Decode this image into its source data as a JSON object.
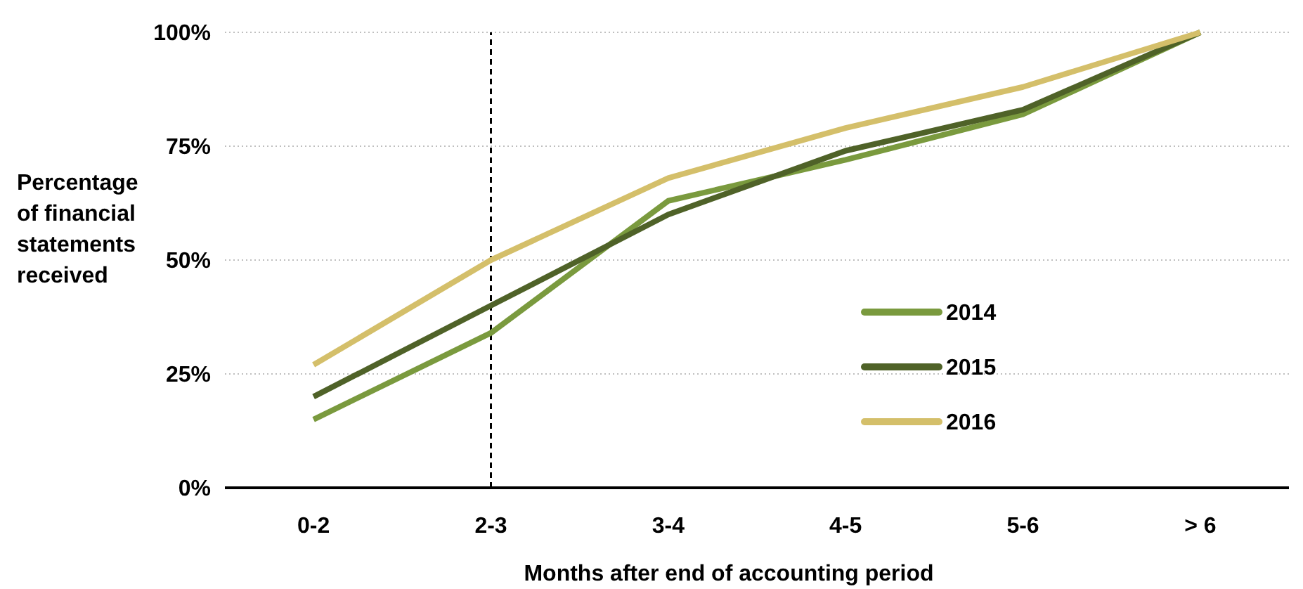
{
  "chart_data": {
    "type": "line",
    "xlabel": "Months after end of accounting period",
    "ylabel": "Percentage of financial statements received",
    "categories": [
      "0-2",
      "2-3",
      "3-4",
      "4-5",
      "5-6",
      "> 6"
    ],
    "series": [
      {
        "name": "2014",
        "color": "#7a9a3e",
        "values": [
          15,
          34,
          63,
          72,
          82,
          100
        ]
      },
      {
        "name": "2015",
        "color": "#4f6228",
        "values": [
          20,
          40,
          60,
          74,
          83,
          100
        ]
      },
      {
        "name": "2016",
        "color": "#d4bf6a",
        "values": [
          27,
          50,
          68,
          79,
          88,
          100
        ]
      }
    ],
    "ylim": [
      0,
      100
    ],
    "yticks": [
      {
        "value": 0,
        "label": "0%"
      },
      {
        "value": 25,
        "label": "25%"
      },
      {
        "value": 50,
        "label": "50%"
      },
      {
        "value": 75,
        "label": "75%"
      },
      {
        "value": 100,
        "label": "100%"
      }
    ],
    "grid": "y",
    "legend": "right",
    "marker": "none",
    "line_style": "solid",
    "ref_lines": [
      {
        "axis": "x",
        "value": "2-3",
        "color": "#000000",
        "line_style": "dashed"
      }
    ]
  }
}
